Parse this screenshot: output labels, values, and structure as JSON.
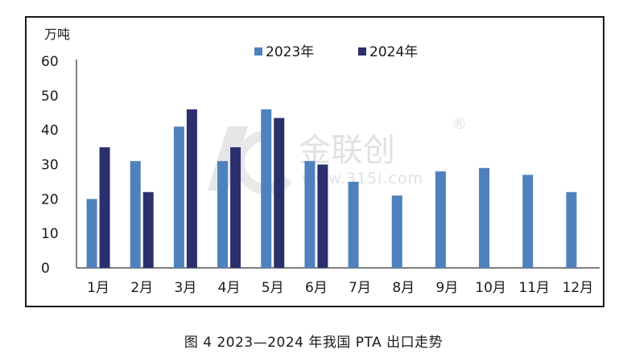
{
  "caption": "图 4  2023—2024 年我国 PTA 出口走势",
  "watermark": {
    "name": "金联创",
    "url": "www.315i.com",
    "mark": "®"
  },
  "chart_data": {
    "type": "bar",
    "ylabel": "万吨",
    "ylim": [
      0,
      60
    ],
    "yticks": [
      0,
      10,
      20,
      30,
      40,
      50,
      60
    ],
    "grid": false,
    "legend_position": "top",
    "categories": [
      "1月",
      "2月",
      "3月",
      "4月",
      "5月",
      "6月",
      "7月",
      "8月",
      "9月",
      "10月",
      "11月",
      "12月"
    ],
    "series": [
      {
        "name": "2023年",
        "color": "#4f81bd",
        "values": [
          20,
          31,
          41,
          31,
          46,
          31,
          25,
          21,
          28,
          29,
          27,
          22
        ]
      },
      {
        "name": "2024年",
        "color": "#2b2f6e",
        "values": [
          35,
          22,
          46,
          35,
          43.5,
          30,
          null,
          null,
          null,
          null,
          null,
          null
        ]
      }
    ]
  }
}
